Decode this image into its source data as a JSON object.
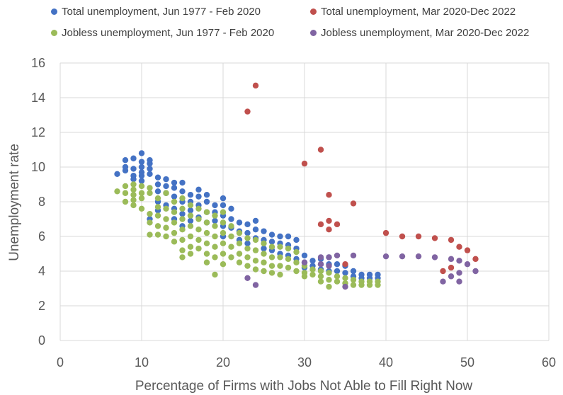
{
  "chart_data": {
    "type": "scatter",
    "title": "",
    "xlabel": "Percentage of Firms with Jobs Not Able to Fill Right Now",
    "ylabel": "Unemployment rate",
    "xlim": [
      0,
      60
    ],
    "ylim": [
      0,
      16
    ],
    "x_ticks": [
      0,
      10,
      20,
      30,
      40,
      50,
      60
    ],
    "y_ticks": [
      0,
      2,
      4,
      6,
      8,
      10,
      12,
      14,
      16
    ],
    "grid": "horizontal and vertical",
    "legend_position": "top",
    "series": [
      {
        "name": "Total unemployment, Jun 1977 - Feb 2020",
        "color": "#4472C4",
        "points": [
          [
            7,
            9.6
          ],
          [
            8,
            10.4
          ],
          [
            8,
            10.0
          ],
          [
            8,
            9.8
          ],
          [
            9,
            10.5
          ],
          [
            9,
            9.9
          ],
          [
            9,
            9.5
          ],
          [
            9,
            9.3
          ],
          [
            10,
            10.8
          ],
          [
            10,
            10.3
          ],
          [
            10,
            10.0
          ],
          [
            10,
            9.7
          ],
          [
            10,
            9.5
          ],
          [
            10,
            9.2
          ],
          [
            11,
            10.4
          ],
          [
            11,
            10.2
          ],
          [
            11,
            9.9
          ],
          [
            11,
            9.6
          ],
          [
            11,
            7.0
          ],
          [
            12,
            9.4
          ],
          [
            12,
            9.0
          ],
          [
            12,
            8.6
          ],
          [
            12,
            8.0
          ],
          [
            12,
            7.5
          ],
          [
            13,
            9.3
          ],
          [
            13,
            8.9
          ],
          [
            13,
            8.5
          ],
          [
            13,
            7.8
          ],
          [
            14,
            9.1
          ],
          [
            14,
            8.8
          ],
          [
            14,
            8.3
          ],
          [
            14,
            7.6
          ],
          [
            14,
            7.0
          ],
          [
            15,
            9.1
          ],
          [
            15,
            8.6
          ],
          [
            15,
            8.0
          ],
          [
            15,
            7.3
          ],
          [
            15,
            6.6
          ],
          [
            16,
            8.4
          ],
          [
            16,
            8.0
          ],
          [
            16,
            7.5
          ],
          [
            16,
            6.9
          ],
          [
            17,
            8.7
          ],
          [
            17,
            8.3
          ],
          [
            17,
            7.8
          ],
          [
            17,
            7.1
          ],
          [
            18,
            8.4
          ],
          [
            18,
            8.0
          ],
          [
            18,
            7.4
          ],
          [
            18,
            6.8
          ],
          [
            19,
            7.8
          ],
          [
            19,
            7.4
          ],
          [
            19,
            6.9
          ],
          [
            20,
            8.2
          ],
          [
            20,
            7.8
          ],
          [
            20,
            7.2
          ],
          [
            20,
            6.6
          ],
          [
            20,
            6.0
          ],
          [
            21,
            7.6
          ],
          [
            21,
            7.0
          ],
          [
            21,
            6.5
          ],
          [
            22,
            6.8
          ],
          [
            22,
            6.3
          ],
          [
            22,
            5.8
          ],
          [
            23,
            6.7
          ],
          [
            23,
            6.2
          ],
          [
            23,
            5.6
          ],
          [
            24,
            6.9
          ],
          [
            24,
            6.4
          ],
          [
            24,
            5.9
          ],
          [
            25,
            6.3
          ],
          [
            25,
            5.8
          ],
          [
            25,
            5.3
          ],
          [
            26,
            6.1
          ],
          [
            26,
            5.7
          ],
          [
            26,
            5.2
          ],
          [
            27,
            6.0
          ],
          [
            27,
            5.6
          ],
          [
            27,
            5.0
          ],
          [
            28,
            6.0
          ],
          [
            28,
            5.5
          ],
          [
            28,
            4.9
          ],
          [
            29,
            5.8
          ],
          [
            29,
            5.3
          ],
          [
            29,
            4.7
          ],
          [
            30,
            4.9
          ],
          [
            30,
            4.5
          ],
          [
            30,
            4.2
          ],
          [
            31,
            4.6
          ],
          [
            31,
            4.3
          ],
          [
            32,
            4.7
          ],
          [
            32,
            4.4
          ],
          [
            32,
            4.1
          ],
          [
            33,
            4.8
          ],
          [
            33,
            4.4
          ],
          [
            33,
            4.0
          ],
          [
            34,
            4.4
          ],
          [
            34,
            4.0
          ],
          [
            35,
            4.3
          ],
          [
            35,
            3.9
          ],
          [
            36,
            4.0
          ],
          [
            36,
            3.7
          ],
          [
            37,
            3.8
          ],
          [
            37,
            3.6
          ],
          [
            38,
            3.8
          ],
          [
            38,
            3.6
          ],
          [
            39,
            3.8
          ],
          [
            39,
            3.6
          ]
        ]
      },
      {
        "name": "Total unemployment, Mar 2020-Dec 2022",
        "color": "#C0504D",
        "points": [
          [
            23,
            13.2
          ],
          [
            24,
            14.7
          ],
          [
            30,
            10.2
          ],
          [
            32,
            11.0
          ],
          [
            33,
            8.4
          ],
          [
            36,
            7.9
          ],
          [
            32,
            6.7
          ],
          [
            33,
            6.9
          ],
          [
            33,
            6.4
          ],
          [
            34,
            6.7
          ],
          [
            40,
            6.2
          ],
          [
            42,
            6.0
          ],
          [
            44,
            6.0
          ],
          [
            46,
            5.9
          ],
          [
            48,
            5.8
          ],
          [
            49,
            5.4
          ],
          [
            50,
            5.2
          ],
          [
            51,
            4.7
          ],
          [
            47,
            4.0
          ],
          [
            48,
            4.2
          ],
          [
            35,
            4.4
          ]
        ]
      },
      {
        "name": "Jobless unemployment, Jun 1977 - Feb 2020",
        "color": "#9BBB59",
        "points": [
          [
            7,
            8.6
          ],
          [
            8,
            8.9
          ],
          [
            8,
            8.5
          ],
          [
            8,
            8.0
          ],
          [
            9,
            9.0
          ],
          [
            9,
            8.7
          ],
          [
            9,
            8.4
          ],
          [
            9,
            8.1
          ],
          [
            9,
            7.8
          ],
          [
            10,
            8.9
          ],
          [
            10,
            8.5
          ],
          [
            10,
            8.2
          ],
          [
            10,
            7.6
          ],
          [
            11,
            8.8
          ],
          [
            11,
            8.5
          ],
          [
            11,
            7.3
          ],
          [
            11,
            6.8
          ],
          [
            11,
            6.1
          ],
          [
            12,
            8.2
          ],
          [
            12,
            7.7
          ],
          [
            12,
            7.2
          ],
          [
            12,
            6.6
          ],
          [
            12,
            6.1
          ],
          [
            13,
            8.5
          ],
          [
            13,
            7.6
          ],
          [
            13,
            7.0
          ],
          [
            13,
            6.5
          ],
          [
            13,
            6.0
          ],
          [
            14,
            8.0
          ],
          [
            14,
            7.4
          ],
          [
            14,
            6.8
          ],
          [
            14,
            6.2
          ],
          [
            14,
            5.7
          ],
          [
            15,
            8.2
          ],
          [
            15,
            7.6
          ],
          [
            15,
            7.0
          ],
          [
            15,
            6.4
          ],
          [
            15,
            5.8
          ],
          [
            15,
            5.2
          ],
          [
            15,
            4.8
          ],
          [
            16,
            7.8
          ],
          [
            16,
            7.2
          ],
          [
            16,
            6.6
          ],
          [
            16,
            6.0
          ],
          [
            16,
            5.4
          ],
          [
            16,
            5.0
          ],
          [
            17,
            7.6
          ],
          [
            17,
            7.0
          ],
          [
            17,
            6.4
          ],
          [
            17,
            5.8
          ],
          [
            17,
            5.3
          ],
          [
            18,
            7.4
          ],
          [
            18,
            6.8
          ],
          [
            18,
            6.2
          ],
          [
            18,
            5.6
          ],
          [
            18,
            5.0
          ],
          [
            18,
            4.5
          ],
          [
            19,
            7.2
          ],
          [
            19,
            6.6
          ],
          [
            19,
            6.0
          ],
          [
            19,
            5.4
          ],
          [
            19,
            4.8
          ],
          [
            19,
            3.8
          ],
          [
            20,
            7.4
          ],
          [
            20,
            6.8
          ],
          [
            20,
            6.2
          ],
          [
            20,
            5.6
          ],
          [
            20,
            5.0
          ],
          [
            20,
            4.4
          ],
          [
            21,
            6.6
          ],
          [
            21,
            6.0
          ],
          [
            21,
            5.4
          ],
          [
            21,
            4.8
          ],
          [
            22,
            6.2
          ],
          [
            22,
            5.6
          ],
          [
            22,
            5.0
          ],
          [
            22,
            4.5
          ],
          [
            23,
            5.9
          ],
          [
            23,
            5.3
          ],
          [
            23,
            4.8
          ],
          [
            23,
            4.3
          ],
          [
            24,
            5.8
          ],
          [
            24,
            5.2
          ],
          [
            24,
            4.6
          ],
          [
            24,
            4.1
          ],
          [
            25,
            5.6
          ],
          [
            25,
            5.0
          ],
          [
            25,
            4.5
          ],
          [
            25,
            4.0
          ],
          [
            26,
            5.4
          ],
          [
            26,
            4.8
          ],
          [
            26,
            4.3
          ],
          [
            26,
            3.9
          ],
          [
            27,
            5.4
          ],
          [
            27,
            4.8
          ],
          [
            27,
            4.3
          ],
          [
            27,
            3.8
          ],
          [
            28,
            5.3
          ],
          [
            28,
            4.7
          ],
          [
            28,
            4.2
          ],
          [
            29,
            5.1
          ],
          [
            29,
            4.5
          ],
          [
            29,
            4.0
          ],
          [
            30,
            4.3
          ],
          [
            30,
            3.9
          ],
          [
            30,
            3.7
          ],
          [
            31,
            4.1
          ],
          [
            31,
            3.8
          ],
          [
            32,
            4.0
          ],
          [
            32,
            3.7
          ],
          [
            32,
            3.4
          ],
          [
            33,
            3.9
          ],
          [
            33,
            3.5
          ],
          [
            33,
            3.1
          ],
          [
            34,
            3.7
          ],
          [
            34,
            3.4
          ],
          [
            35,
            3.6
          ],
          [
            35,
            3.3
          ],
          [
            36,
            3.5
          ],
          [
            36,
            3.2
          ],
          [
            37,
            3.4
          ],
          [
            37,
            3.2
          ],
          [
            38,
            3.4
          ],
          [
            38,
            3.2
          ],
          [
            39,
            3.4
          ],
          [
            39,
            3.2
          ]
        ]
      },
      {
        "name": "Jobless unemployment, Mar 2020-Dec 2022",
        "color": "#8064A2",
        "points": [
          [
            23,
            3.6
          ],
          [
            24,
            3.2
          ],
          [
            30,
            4.5
          ],
          [
            32,
            4.8
          ],
          [
            33,
            4.8
          ],
          [
            34,
            4.9
          ],
          [
            36,
            4.9
          ],
          [
            32,
            4.4
          ],
          [
            33,
            4.3
          ],
          [
            35,
            3.1
          ],
          [
            40,
            4.85
          ],
          [
            42,
            4.85
          ],
          [
            44,
            4.85
          ],
          [
            46,
            4.8
          ],
          [
            48,
            4.7
          ],
          [
            49,
            4.6
          ],
          [
            50,
            4.4
          ],
          [
            51,
            4.0
          ],
          [
            47,
            3.4
          ],
          [
            48,
            3.7
          ],
          [
            49,
            3.9
          ],
          [
            49,
            3.4
          ]
        ]
      }
    ]
  }
}
